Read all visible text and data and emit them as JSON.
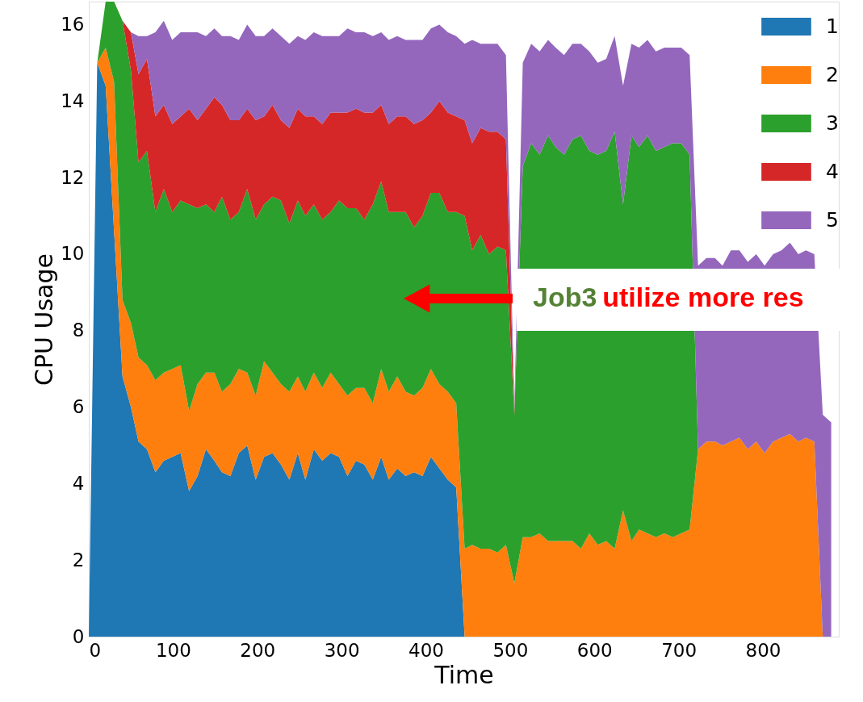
{
  "chart_data": {
    "type": "area",
    "stacked": true,
    "xlabel": "Time",
    "ylabel": "CPU Usage",
    "x": [
      0,
      10,
      20,
      30,
      40,
      50,
      59,
      69,
      79,
      89,
      99,
      109,
      119,
      129,
      139,
      149,
      158,
      168,
      178,
      188,
      198,
      208,
      218,
      228,
      238,
      248,
      257,
      267,
      277,
      287,
      297,
      307,
      317,
      327,
      337,
      347,
      356,
      366,
      376,
      386,
      396,
      406,
      416,
      426,
      436,
      446,
      455,
      465,
      475,
      485,
      495,
      505,
      515,
      525,
      535,
      545,
      554,
      564,
      574,
      584,
      594,
      604,
      614,
      624,
      634,
      644,
      653,
      663,
      673,
      683,
      693,
      703,
      713,
      723,
      733,
      743,
      752,
      762,
      772,
      782,
      792,
      802,
      812,
      822,
      832,
      842,
      851,
      861,
      871,
      881
    ],
    "series": [
      {
        "name": "1",
        "color": "#1f77b4",
        "values": [
          0,
          15.0,
          14.4,
          10.6,
          6.8,
          6.0,
          5.1,
          4.9,
          4.3,
          4.6,
          4.7,
          4.8,
          3.8,
          4.2,
          4.9,
          4.6,
          4.3,
          4.2,
          4.8,
          5.0,
          4.1,
          4.7,
          4.8,
          4.5,
          4.1,
          4.8,
          4.1,
          4.9,
          4.6,
          4.8,
          4.7,
          4.2,
          4.6,
          4.5,
          4.1,
          4.7,
          4.1,
          4.4,
          4.2,
          4.3,
          4.2,
          4.7,
          4.4,
          4.1,
          3.9,
          0,
          null,
          null,
          null,
          null,
          null,
          null,
          null,
          null,
          null,
          null,
          null,
          null,
          null,
          null,
          null,
          null,
          null,
          null,
          null,
          null,
          null,
          null,
          null,
          null,
          null,
          null,
          null,
          null,
          null,
          null,
          null,
          null,
          null,
          null,
          null,
          null,
          null,
          null,
          null,
          null,
          null,
          null,
          null,
          null
        ]
      },
      {
        "name": "2",
        "color": "#ff7f0e",
        "values": [
          null,
          0,
          1.0,
          3.9,
          2.0,
          2.2,
          2.2,
          2.2,
          2.4,
          2.3,
          2.3,
          2.3,
          2.1,
          2.4,
          2.0,
          2.3,
          2.1,
          2.4,
          2.2,
          1.9,
          2.2,
          2.5,
          2.1,
          2.1,
          2.3,
          2.0,
          2.3,
          2.0,
          1.9,
          2.1,
          1.9,
          2.1,
          1.9,
          2.0,
          2.0,
          2.3,
          2.3,
          2.4,
          2.2,
          2.0,
          2.3,
          2.3,
          2.2,
          2.3,
          2.2,
          2.3,
          2.4,
          2.3,
          2.3,
          2.2,
          2.4,
          1.4,
          2.6,
          2.6,
          2.7,
          2.5,
          2.5,
          2.5,
          2.5,
          2.3,
          2.7,
          2.4,
          2.5,
          2.3,
          3.3,
          2.5,
          2.8,
          2.7,
          2.6,
          2.7,
          2.6,
          2.7,
          2.8,
          4.9,
          5.1,
          5.1,
          5.0,
          5.1,
          5.2,
          4.9,
          5.1,
          4.8,
          5.1,
          5.2,
          5.3,
          5.1,
          5.2,
          5.1,
          0,
          null
        ]
      },
      {
        "name": "3",
        "color": "#2ca02c",
        "values": [
          null,
          0,
          1.2,
          2.1,
          7.3,
          6.6,
          5.1,
          5.6,
          4.4,
          4.8,
          4.1,
          4.3,
          5.4,
          4.6,
          4.4,
          4.2,
          5.1,
          4.3,
          4.1,
          4.8,
          4.6,
          4.1,
          4.6,
          4.8,
          4.4,
          4.6,
          4.6,
          4.4,
          4.4,
          4.2,
          4.8,
          4.9,
          4.7,
          4.4,
          5.2,
          4.9,
          4.7,
          4.3,
          4.7,
          4.4,
          4.5,
          4.6,
          5.0,
          4.7,
          5.0,
          8.7,
          7.7,
          8.2,
          7.7,
          8.0,
          7.7,
          4.4,
          9.7,
          10.3,
          9.9,
          10.6,
          10.3,
          10.1,
          10.5,
          10.8,
          10.0,
          10.2,
          10.2,
          10.9,
          8.0,
          10.6,
          10.0,
          10.4,
          10.1,
          10.1,
          10.3,
          10.2,
          9.8,
          0,
          null,
          null,
          null,
          null,
          null,
          null,
          null,
          null,
          null,
          null,
          null,
          null,
          null,
          null,
          null,
          null
        ]
      },
      {
        "name": "4",
        "color": "#d62728",
        "values": [
          null,
          null,
          null,
          null,
          0,
          1.0,
          2.3,
          2.4,
          2.5,
          2.2,
          2.3,
          2.2,
          2.5,
          2.3,
          2.5,
          3.0,
          2.4,
          2.6,
          2.4,
          2.1,
          2.6,
          2.3,
          2.4,
          2.1,
          2.5,
          2.4,
          2.6,
          2.3,
          2.5,
          2.6,
          2.3,
          2.5,
          2.6,
          2.8,
          2.4,
          2.0,
          2.3,
          2.5,
          2.5,
          2.7,
          2.5,
          2.1,
          2.4,
          2.6,
          2.5,
          2.5,
          2.8,
          2.8,
          3.2,
          3.0,
          2.9,
          0.1,
          0,
          null,
          null,
          null,
          null,
          null,
          null,
          null,
          null,
          null,
          null,
          null,
          null,
          null,
          null,
          null,
          null,
          null,
          null,
          null,
          null,
          null,
          null,
          null,
          null,
          null,
          null,
          null,
          null,
          null,
          null,
          null,
          null,
          null,
          null,
          null,
          null,
          null
        ]
      },
      {
        "name": "5",
        "color": "#9467bd",
        "values": [
          null,
          null,
          null,
          null,
          null,
          0,
          1.0,
          0.6,
          2.2,
          2.2,
          2.2,
          2.2,
          2.0,
          2.3,
          1.9,
          1.8,
          1.8,
          2.2,
          2.1,
          2.2,
          2.2,
          2.1,
          2.0,
          2.2,
          2.2,
          1.9,
          2.0,
          2.2,
          2.3,
          2.0,
          2.0,
          2.2,
          2.0,
          2.1,
          2.0,
          1.9,
          2.2,
          2.1,
          2.0,
          2.2,
          2.1,
          2.2,
          2.0,
          2.1,
          2.1,
          2.0,
          2.7,
          2.2,
          2.3,
          2.3,
          2.2,
          0.1,
          2.7,
          2.6,
          2.7,
          2.5,
          2.6,
          2.6,
          2.5,
          2.4,
          2.6,
          2.4,
          2.4,
          2.5,
          3.1,
          2.4,
          2.6,
          2.5,
          2.6,
          2.6,
          2.5,
          2.5,
          2.6,
          4.8,
          4.8,
          4.8,
          4.7,
          5.0,
          4.9,
          4.9,
          4.9,
          4.9,
          4.9,
          4.9,
          5.0,
          4.9,
          4.9,
          4.9,
          5.8,
          5.6
        ]
      }
    ],
    "xlim": [
      0,
      890
    ],
    "xticks": [
      0,
      100,
      200,
      300,
      400,
      500,
      600,
      700,
      800
    ],
    "ylim": [
      0,
      16.6
    ],
    "yticks": [
      0,
      2,
      4,
      6,
      8,
      10,
      12,
      14,
      16
    ],
    "grid": false,
    "legend": "top right",
    "annotations": [
      "Job3",
      "utilize more res"
    ]
  }
}
